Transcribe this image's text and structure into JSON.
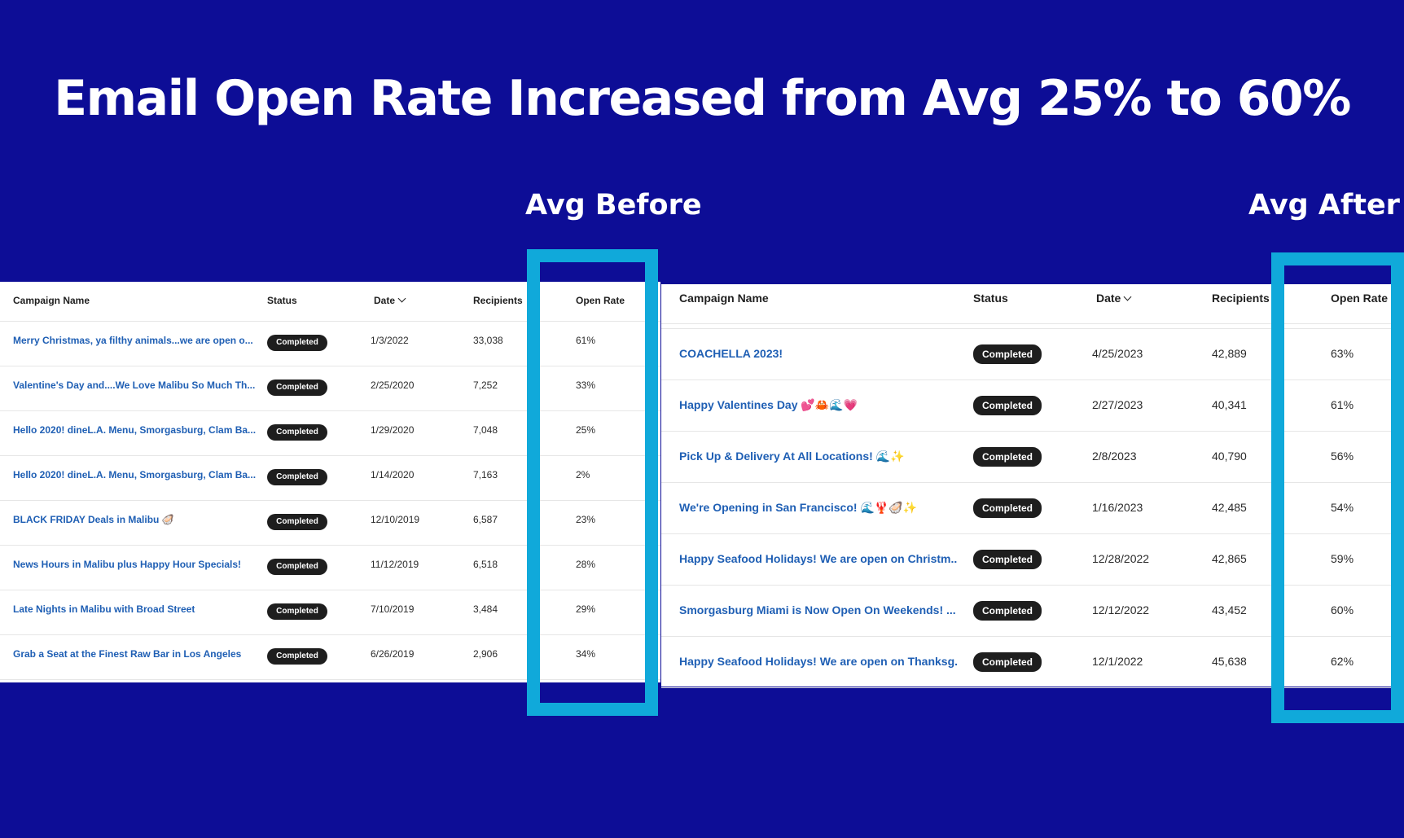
{
  "headline": "Email Open Rate Increased from Avg 25% to 60%",
  "labels": {
    "before": "Avg Before",
    "after": "Avg After"
  },
  "colors": {
    "background": "#0d0d96",
    "highlight": "#10a9da",
    "link": "#1f5fb4",
    "badge": "#1e1e1e"
  },
  "columns": {
    "name": "Campaign Name",
    "status": "Status",
    "date": "Date",
    "recipients": "Recipients",
    "open_rate": "Open Rate",
    "date_sort_icon": "chevron-down-icon"
  },
  "before_rows": [
    {
      "name": "Merry Christmas, ya filthy animals...we are open o...",
      "status": "Completed",
      "date": "1/3/2022",
      "recipients": "33,038",
      "open_rate": "61%"
    },
    {
      "name": "Valentine's Day and....We Love Malibu So Much Th...",
      "status": "Completed",
      "date": "2/25/2020",
      "recipients": "7,252",
      "open_rate": "33%"
    },
    {
      "name": "Hello 2020! dineL.A. Menu, Smorgasburg, Clam Ba...",
      "status": "Completed",
      "date": "1/29/2020",
      "recipients": "7,048",
      "open_rate": "25%"
    },
    {
      "name": "Hello 2020! dineL.A. Menu, Smorgasburg, Clam Ba...",
      "status": "Completed",
      "date": "1/14/2020",
      "recipients": "7,163",
      "open_rate": "2%"
    },
    {
      "name": "BLACK FRIDAY Deals in Malibu 🦪",
      "status": "Completed",
      "date": "12/10/2019",
      "recipients": "6,587",
      "open_rate": "23%"
    },
    {
      "name": "News Hours in Malibu plus Happy Hour Specials!",
      "status": "Completed",
      "date": "11/12/2019",
      "recipients": "6,518",
      "open_rate": "28%"
    },
    {
      "name": "Late Nights in Malibu with Broad Street",
      "status": "Completed",
      "date": "7/10/2019",
      "recipients": "3,484",
      "open_rate": "29%"
    },
    {
      "name": "Grab a Seat at the Finest Raw Bar in Los Angeles",
      "status": "Completed",
      "date": "6/26/2019",
      "recipients": "2,906",
      "open_rate": "34%"
    }
  ],
  "after_rows": [
    {
      "name": "COACHELLA 2023!",
      "status": "Completed",
      "date": "4/25/2023",
      "recipients": "42,889",
      "open_rate": "63%"
    },
    {
      "name": "Happy Valentines Day 💕🦀🌊💗",
      "status": "Completed",
      "date": "2/27/2023",
      "recipients": "40,341",
      "open_rate": "61%"
    },
    {
      "name": "Pick Up & Delivery At All Locations! 🌊✨",
      "status": "Completed",
      "date": "2/8/2023",
      "recipients": "40,790",
      "open_rate": "56%"
    },
    {
      "name": "We're Opening in San Francisco! 🌊🦞🦪✨",
      "status": "Completed",
      "date": "1/16/2023",
      "recipients": "42,485",
      "open_rate": "54%"
    },
    {
      "name": "Happy Seafood Holidays! We are open on Christm...",
      "status": "Completed",
      "date": "12/28/2022",
      "recipients": "42,865",
      "open_rate": "59%"
    },
    {
      "name": "Smorgasburg Miami is Now Open On Weekends! ...",
      "status": "Completed",
      "date": "12/12/2022",
      "recipients": "43,452",
      "open_rate": "60%"
    },
    {
      "name": "Happy Seafood Holidays! We are open on Thanksg...",
      "status": "Completed",
      "date": "12/1/2022",
      "recipients": "45,638",
      "open_rate": "62%"
    }
  ]
}
